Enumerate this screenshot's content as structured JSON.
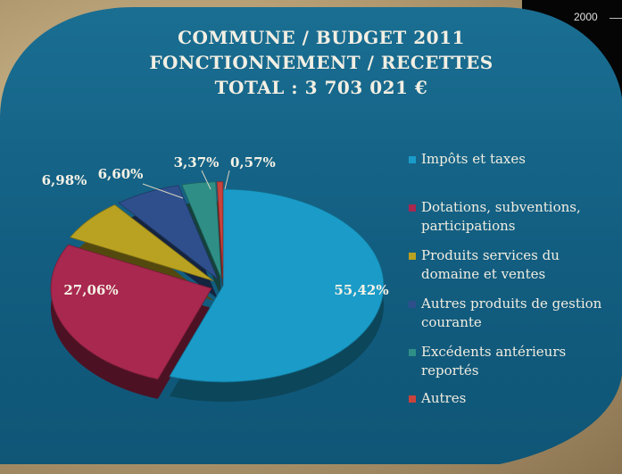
{
  "corner": {
    "label": "2000"
  },
  "header": {
    "line1": "COMMUNE / BUDGET 2011",
    "line2": "FONCTIONNEMENT / RECETTES",
    "line3": "TOTAL : 3 703 021 €"
  },
  "chart_data": {
    "type": "pie",
    "title": "",
    "legend_position": "right",
    "slices": [
      {
        "label": "Impôts et taxes",
        "value": 55.42,
        "value_label": "55,42%",
        "color": "#1a9bc8"
      },
      {
        "label": "Dotations, subventions, participations",
        "value": 27.06,
        "value_label": "27,06%",
        "color": "#a8284f"
      },
      {
        "label": "Produits services du domaine et ventes",
        "value": 6.98,
        "value_label": "6,98%",
        "color": "#b9a221"
      },
      {
        "label": "Autres produits de gestion courante",
        "value": 6.6,
        "value_label": "6,60%",
        "color": "#2e4f8c"
      },
      {
        "label": "Excédents antérieurs reportés",
        "value": 3.37,
        "value_label": "3,37%",
        "color": "#2f8f86"
      },
      {
        "label": "Autres",
        "value": 0.57,
        "value_label": "0,57%",
        "color": "#c9423c"
      }
    ]
  }
}
